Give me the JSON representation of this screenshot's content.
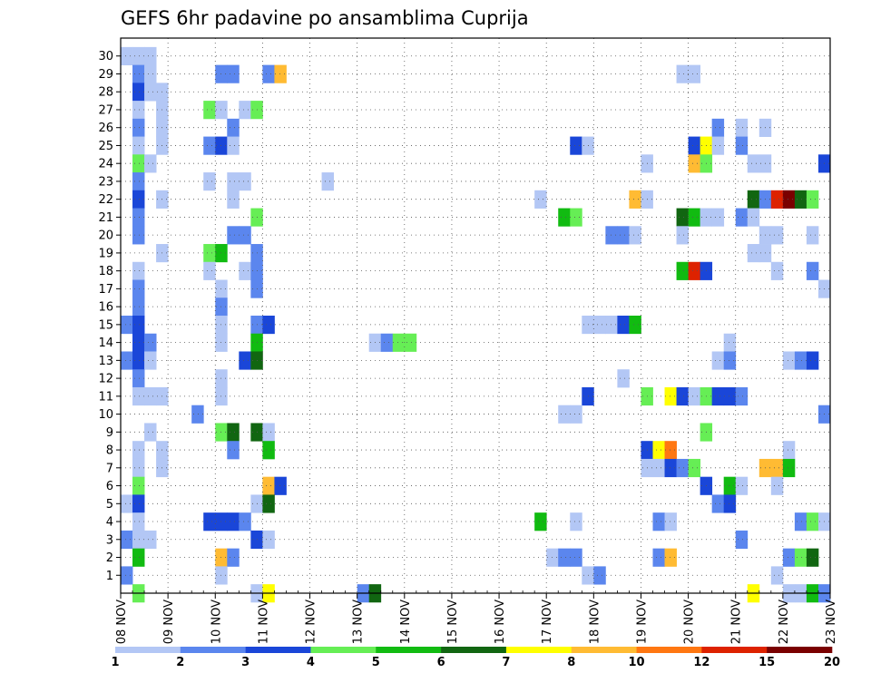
{
  "chart_data": {
    "type": "heatmap",
    "title": "GEFS 6hr padavine po ansamblima Cuprija",
    "xlabel": "",
    "ylabel": "",
    "x_tick_labels": [
      "08 NOV",
      "09 NOV",
      "10 NOV",
      "11 NOV",
      "12 NOV",
      "13 NOV",
      "14 NOV",
      "15 NOV",
      "16 NOV",
      "17 NOV",
      "18 NOV",
      "19 NOV",
      "20 NOV",
      "21 NOV",
      "22 NOV",
      "23 NOV"
    ],
    "y_tick_labels": [
      "1",
      "2",
      "3",
      "4",
      "5",
      "6",
      "7",
      "8",
      "9",
      "10",
      "11",
      "12",
      "13",
      "14",
      "15",
      "16",
      "17",
      "18",
      "19",
      "20",
      "21",
      "22",
      "23",
      "24",
      "25",
      "26",
      "27",
      "28",
      "29",
      "30"
    ],
    "xlim": [
      0,
      60
    ],
    "ylim": [
      0,
      31
    ],
    "x_units": "6-hour steps from 08 NOV 00Z",
    "y_units": "ensemble member",
    "colorbar": {
      "labels": [
        "1",
        "2",
        "3",
        "4",
        "5",
        "6",
        "7",
        "8",
        "10",
        "12",
        "15",
        "20"
      ],
      "colors": [
        "#b3c7f5",
        "#5b86ee",
        "#1a46d8",
        "#66ee55",
        "#11bb11",
        "#116611",
        "#ffff00",
        "#ffbb33",
        "#ff7711",
        "#dd2200",
        "#7a0000"
      ]
    },
    "cells": [
      [
        0,
        30,
        0
      ],
      [
        1,
        30,
        0
      ],
      [
        2,
        30,
        0
      ],
      [
        1,
        29,
        1
      ],
      [
        2,
        29,
        0
      ],
      [
        8,
        29,
        1
      ],
      [
        9,
        29,
        1
      ],
      [
        12,
        29,
        1
      ],
      [
        13,
        29,
        7
      ],
      [
        47,
        29,
        0
      ],
      [
        48,
        29,
        0
      ],
      [
        1,
        28,
        2
      ],
      [
        2,
        28,
        0
      ],
      [
        3,
        28,
        0
      ],
      [
        1,
        27,
        0
      ],
      [
        3,
        27,
        0
      ],
      [
        7,
        27,
        3
      ],
      [
        8,
        27,
        0
      ],
      [
        10,
        27,
        0
      ],
      [
        11,
        27,
        3
      ],
      [
        1,
        26,
        1
      ],
      [
        3,
        26,
        0
      ],
      [
        9,
        26,
        1
      ],
      [
        50,
        26,
        1
      ],
      [
        52,
        26,
        0
      ],
      [
        54,
        26,
        0
      ],
      [
        1,
        25,
        0
      ],
      [
        3,
        25,
        0
      ],
      [
        7,
        25,
        1
      ],
      [
        8,
        25,
        2
      ],
      [
        9,
        25,
        0
      ],
      [
        38,
        25,
        2
      ],
      [
        39,
        25,
        0
      ],
      [
        48,
        25,
        2
      ],
      [
        49,
        25,
        6
      ],
      [
        50,
        25,
        0
      ],
      [
        52,
        25,
        1
      ],
      [
        1,
        24,
        3
      ],
      [
        2,
        24,
        0
      ],
      [
        44,
        24,
        0
      ],
      [
        48,
        24,
        7
      ],
      [
        49,
        24,
        3
      ],
      [
        53,
        24,
        0
      ],
      [
        54,
        24,
        0
      ],
      [
        59,
        24,
        2
      ],
      [
        1,
        23,
        1
      ],
      [
        7,
        23,
        0
      ],
      [
        9,
        23,
        0
      ],
      [
        10,
        23,
        0
      ],
      [
        17,
        23,
        0
      ],
      [
        1,
        22,
        2
      ],
      [
        3,
        22,
        0
      ],
      [
        9,
        22,
        0
      ],
      [
        35,
        22,
        0
      ],
      [
        43,
        22,
        7
      ],
      [
        44,
        22,
        0
      ],
      [
        53,
        22,
        5
      ],
      [
        54,
        22,
        1
      ],
      [
        55,
        22,
        9
      ],
      [
        56,
        22,
        10
      ],
      [
        57,
        22,
        5
      ],
      [
        58,
        22,
        3
      ],
      [
        1,
        21,
        1
      ],
      [
        11,
        21,
        3
      ],
      [
        37,
        21,
        4
      ],
      [
        38,
        21,
        3
      ],
      [
        47,
        21,
        5
      ],
      [
        48,
        21,
        4
      ],
      [
        49,
        21,
        0
      ],
      [
        50,
        21,
        0
      ],
      [
        52,
        21,
        1
      ],
      [
        53,
        21,
        0
      ],
      [
        1,
        20,
        1
      ],
      [
        9,
        20,
        1
      ],
      [
        10,
        20,
        1
      ],
      [
        41,
        20,
        1
      ],
      [
        42,
        20,
        1
      ],
      [
        43,
        20,
        0
      ],
      [
        47,
        20,
        0
      ],
      [
        54,
        20,
        0
      ],
      [
        55,
        20,
        0
      ],
      [
        58,
        20,
        0
      ],
      [
        3,
        19,
        0
      ],
      [
        7,
        19,
        3
      ],
      [
        8,
        19,
        4
      ],
      [
        11,
        19,
        1
      ],
      [
        53,
        19,
        0
      ],
      [
        54,
        19,
        0
      ],
      [
        1,
        18,
        0
      ],
      [
        7,
        18,
        0
      ],
      [
        10,
        18,
        0
      ],
      [
        11,
        18,
        1
      ],
      [
        47,
        18,
        4
      ],
      [
        48,
        18,
        9
      ],
      [
        49,
        18,
        2
      ],
      [
        55,
        18,
        0
      ],
      [
        58,
        18,
        1
      ],
      [
        1,
        17,
        1
      ],
      [
        8,
        17,
        0
      ],
      [
        11,
        17,
        1
      ],
      [
        59,
        17,
        0
      ],
      [
        1,
        16,
        1
      ],
      [
        8,
        16,
        1
      ],
      [
        0,
        15,
        1
      ],
      [
        1,
        15,
        2
      ],
      [
        8,
        15,
        0
      ],
      [
        11,
        15,
        1
      ],
      [
        12,
        15,
        2
      ],
      [
        39,
        15,
        0
      ],
      [
        40,
        15,
        0
      ],
      [
        41,
        15,
        0
      ],
      [
        42,
        15,
        2
      ],
      [
        43,
        15,
        4
      ],
      [
        1,
        14,
        2
      ],
      [
        2,
        14,
        1
      ],
      [
        8,
        14,
        0
      ],
      [
        11,
        14,
        4
      ],
      [
        21,
        14,
        0
      ],
      [
        22,
        14,
        1
      ],
      [
        23,
        14,
        3
      ],
      [
        24,
        14,
        3
      ],
      [
        51,
        14,
        0
      ],
      [
        0,
        13,
        1
      ],
      [
        1,
        13,
        2
      ],
      [
        2,
        13,
        0
      ],
      [
        10,
        13,
        2
      ],
      [
        11,
        13,
        5
      ],
      [
        50,
        13,
        0
      ],
      [
        51,
        13,
        1
      ],
      [
        56,
        13,
        0
      ],
      [
        57,
        13,
        1
      ],
      [
        58,
        13,
        2
      ],
      [
        1,
        12,
        1
      ],
      [
        8,
        12,
        0
      ],
      [
        42,
        12,
        0
      ],
      [
        1,
        11,
        0
      ],
      [
        2,
        11,
        0
      ],
      [
        3,
        11,
        0
      ],
      [
        8,
        11,
        0
      ],
      [
        39,
        11,
        2
      ],
      [
        44,
        11,
        3
      ],
      [
        46,
        11,
        6
      ],
      [
        47,
        11,
        2
      ],
      [
        48,
        11,
        0
      ],
      [
        49,
        11,
        3
      ],
      [
        50,
        11,
        2
      ],
      [
        51,
        11,
        2
      ],
      [
        52,
        11,
        1
      ],
      [
        6,
        10,
        1
      ],
      [
        37,
        10,
        0
      ],
      [
        38,
        10,
        0
      ],
      [
        59,
        10,
        1
      ],
      [
        2,
        9,
        0
      ],
      [
        8,
        9,
        3
      ],
      [
        9,
        9,
        5
      ],
      [
        11,
        9,
        5
      ],
      [
        12,
        9,
        0
      ],
      [
        49,
        9,
        3
      ],
      [
        1,
        8,
        0
      ],
      [
        3,
        8,
        0
      ],
      [
        9,
        8,
        1
      ],
      [
        12,
        8,
        4
      ],
      [
        44,
        8,
        2
      ],
      [
        45,
        8,
        6
      ],
      [
        46,
        8,
        8
      ],
      [
        56,
        8,
        0
      ],
      [
        1,
        7,
        0
      ],
      [
        3,
        7,
        0
      ],
      [
        44,
        7,
        0
      ],
      [
        45,
        7,
        0
      ],
      [
        46,
        7,
        2
      ],
      [
        47,
        7,
        1
      ],
      [
        48,
        7,
        3
      ],
      [
        54,
        7,
        7
      ],
      [
        55,
        7,
        7
      ],
      [
        56,
        7,
        4
      ],
      [
        1,
        6,
        3
      ],
      [
        12,
        6,
        7
      ],
      [
        13,
        6,
        2
      ],
      [
        49,
        6,
        2
      ],
      [
        51,
        6,
        4
      ],
      [
        52,
        6,
        0
      ],
      [
        55,
        6,
        0
      ],
      [
        0,
        5,
        0
      ],
      [
        1,
        5,
        2
      ],
      [
        11,
        5,
        0
      ],
      [
        12,
        5,
        5
      ],
      [
        50,
        5,
        1
      ],
      [
        51,
        5,
        2
      ],
      [
        1,
        4,
        0
      ],
      [
        7,
        4,
        2
      ],
      [
        8,
        4,
        2
      ],
      [
        9,
        4,
        2
      ],
      [
        10,
        4,
        1
      ],
      [
        35,
        4,
        4
      ],
      [
        38,
        4,
        0
      ],
      [
        45,
        4,
        1
      ],
      [
        46,
        4,
        0
      ],
      [
        57,
        4,
        1
      ],
      [
        58,
        4,
        3
      ],
      [
        59,
        4,
        0
      ],
      [
        0,
        3,
        1
      ],
      [
        1,
        3,
        0
      ],
      [
        2,
        3,
        0
      ],
      [
        11,
        3,
        2
      ],
      [
        12,
        3,
        0
      ],
      [
        52,
        3,
        1
      ],
      [
        1,
        2,
        4
      ],
      [
        8,
        2,
        7
      ],
      [
        9,
        2,
        1
      ],
      [
        36,
        2,
        0
      ],
      [
        37,
        2,
        1
      ],
      [
        38,
        2,
        1
      ],
      [
        45,
        2,
        1
      ],
      [
        46,
        2,
        7
      ],
      [
        56,
        2,
        1
      ],
      [
        57,
        2,
        3
      ],
      [
        58,
        2,
        5
      ],
      [
        0,
        1,
        1
      ],
      [
        8,
        1,
        0
      ],
      [
        39,
        1,
        0
      ],
      [
        40,
        1,
        1
      ],
      [
        55,
        1,
        0
      ],
      [
        1,
        0,
        3
      ],
      [
        11,
        0,
        0
      ],
      [
        12,
        0,
        6
      ],
      [
        20,
        0,
        1
      ],
      [
        21,
        0,
        5
      ],
      [
        53,
        0,
        6
      ],
      [
        56,
        0,
        0
      ],
      [
        57,
        0,
        0
      ],
      [
        58,
        0,
        4
      ],
      [
        59,
        0,
        1
      ]
    ]
  }
}
